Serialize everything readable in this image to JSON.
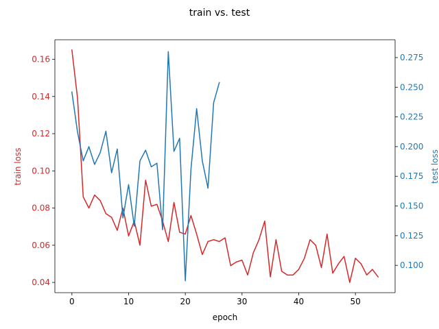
{
  "chart_data": {
    "type": "line",
    "title": "train vs. test",
    "xlabel": "epoch",
    "xlim": [
      -3,
      57
    ],
    "x_ticks": [
      0,
      10,
      20,
      30,
      40,
      50
    ],
    "colors": {
      "train": "#d62728",
      "test": "#1f77b4",
      "axis": "#000000"
    },
    "series": [
      {
        "name": "train loss",
        "axis": "left",
        "color": "#d62728",
        "x": [
          0,
          1,
          2,
          3,
          4,
          5,
          6,
          7,
          8,
          9,
          10,
          11,
          12,
          13,
          14,
          15,
          16,
          17,
          18,
          19,
          20,
          21,
          22,
          23,
          24,
          25,
          26,
          27,
          28,
          29,
          30,
          31,
          32,
          33,
          34,
          35,
          36,
          37,
          38,
          39,
          40,
          41,
          42,
          43,
          44,
          45,
          46,
          47,
          48,
          49,
          50,
          51,
          52,
          53,
          54
        ],
        "values": [
          0.165,
          0.139,
          0.086,
          0.08,
          0.087,
          0.084,
          0.077,
          0.075,
          0.068,
          0.08,
          0.065,
          0.073,
          0.06,
          0.095,
          0.081,
          0.082,
          0.073,
          0.062,
          0.083,
          0.067,
          0.066,
          0.076,
          0.066,
          0.055,
          0.062,
          0.063,
          0.062,
          0.064,
          0.049,
          0.051,
          0.052,
          0.044,
          0.056,
          0.063,
          0.073,
          0.043,
          0.063,
          0.046,
          0.044,
          0.044,
          0.047,
          0.053,
          0.063,
          0.06,
          0.048,
          0.066,
          0.045,
          0.05,
          0.054,
          0.04,
          0.053,
          0.05,
          0.044,
          0.047,
          0.043
        ]
      },
      {
        "name": "test loss",
        "axis": "right",
        "color": "#1f77b4",
        "x": [
          0,
          1,
          2,
          3,
          4,
          5,
          6,
          7,
          8,
          9,
          10,
          11,
          12,
          13,
          14,
          15,
          16,
          17,
          18,
          19,
          20,
          21,
          22,
          23,
          24,
          25,
          26
        ],
        "values": [
          0.246,
          0.212,
          0.188,
          0.2,
          0.185,
          0.195,
          0.213,
          0.178,
          0.198,
          0.14,
          0.168,
          0.133,
          0.188,
          0.197,
          0.183,
          0.186,
          0.13,
          0.28,
          0.196,
          0.207,
          0.087,
          0.181,
          0.232,
          0.188,
          0.165,
          0.237,
          0.254
        ]
      }
    ],
    "y_left": {
      "label": "train loss",
      "ylim": [
        0.0345,
        0.1705
      ],
      "ticks": [
        0.04,
        0.06,
        0.08,
        0.1,
        0.12,
        0.14,
        0.16
      ],
      "tick_labels": [
        "0.04",
        "0.06",
        "0.08",
        "0.10",
        "0.12",
        "0.14",
        "0.16"
      ]
    },
    "y_right": {
      "label": "test loss",
      "ylim": [
        0.077,
        0.29
      ],
      "ticks": [
        0.1,
        0.125,
        0.15,
        0.175,
        0.2,
        0.225,
        0.25,
        0.275
      ],
      "tick_labels": [
        "0.100",
        "0.125",
        "0.150",
        "0.175",
        "0.200",
        "0.225",
        "0.250",
        "0.275"
      ]
    },
    "grid": false,
    "legend": "none"
  }
}
